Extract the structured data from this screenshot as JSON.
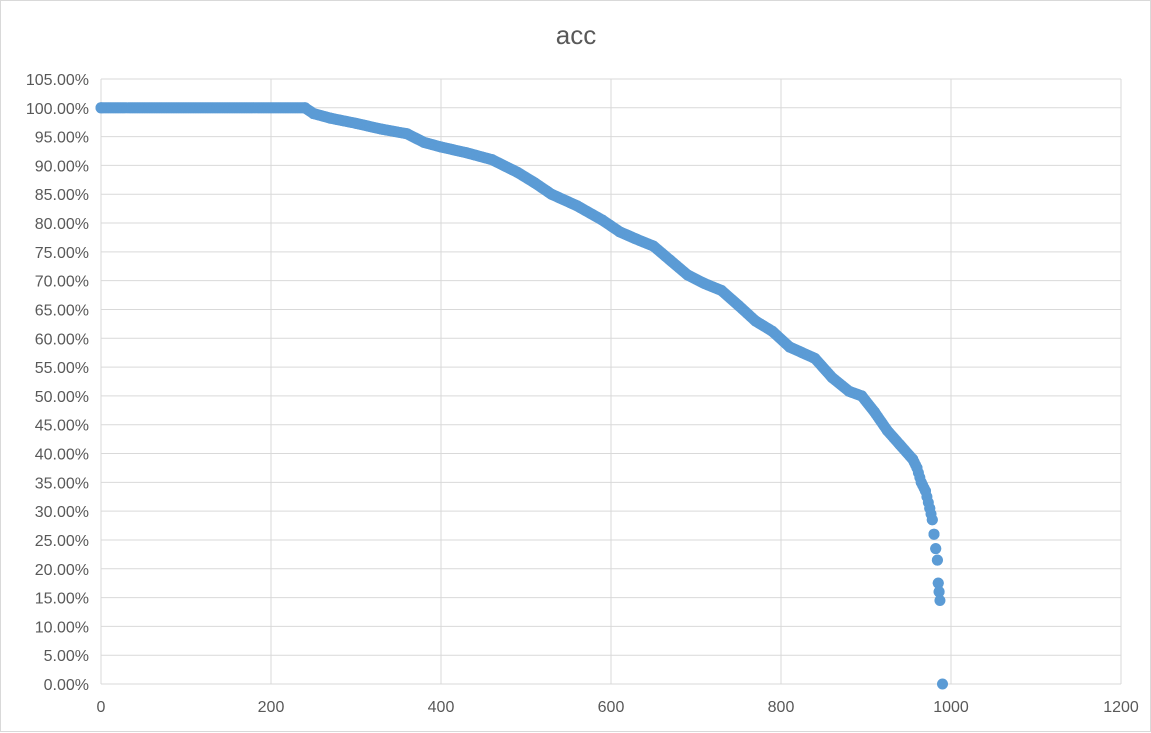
{
  "chart_data": {
    "type": "scatter",
    "title": "acc",
    "xlabel": "",
    "ylabel": "",
    "xlim": [
      0,
      1200
    ],
    "ylim": [
      0,
      1.05
    ],
    "grid": true,
    "legend": "none",
    "x_ticks": [
      0,
      200,
      400,
      600,
      800,
      1000,
      1200
    ],
    "x_tick_labels": [
      "0",
      "200",
      "400",
      "600",
      "800",
      "1000",
      "1200"
    ],
    "y_ticks": [
      0,
      0.05,
      0.1,
      0.15,
      0.2,
      0.25,
      0.3,
      0.35,
      0.4,
      0.45,
      0.5,
      0.55,
      0.6,
      0.65,
      0.7,
      0.75,
      0.8,
      0.85,
      0.9,
      0.95,
      1.0,
      1.05
    ],
    "y_tick_labels": [
      "0.00%",
      "5.00%",
      "10.00%",
      "15.00%",
      "20.00%",
      "25.00%",
      "30.00%",
      "35.00%",
      "40.00%",
      "45.00%",
      "50.00%",
      "55.00%",
      "60.00%",
      "65.00%",
      "70.00%",
      "75.00%",
      "80.00%",
      "85.00%",
      "90.00%",
      "95.00%",
      "100.00%",
      "105.00%"
    ],
    "series": [
      {
        "marker_color": "#5b9bd5",
        "points": [
          [
            0,
            1.0
          ],
          [
            240,
            1.0
          ],
          [
            250,
            0.99
          ],
          [
            270,
            0.982
          ],
          [
            300,
            0.973
          ],
          [
            330,
            0.963
          ],
          [
            360,
            0.955
          ],
          [
            380,
            0.94
          ],
          [
            400,
            0.932
          ],
          [
            430,
            0.922
          ],
          [
            460,
            0.91
          ],
          [
            490,
            0.888
          ],
          [
            510,
            0.87
          ],
          [
            530,
            0.85
          ],
          [
            560,
            0.83
          ],
          [
            590,
            0.805
          ],
          [
            610,
            0.785
          ],
          [
            630,
            0.772
          ],
          [
            650,
            0.76
          ],
          [
            670,
            0.735
          ],
          [
            690,
            0.71
          ],
          [
            710,
            0.695
          ],
          [
            730,
            0.683
          ],
          [
            750,
            0.657
          ],
          [
            770,
            0.63
          ],
          [
            790,
            0.612
          ],
          [
            810,
            0.585
          ],
          [
            840,
            0.565
          ],
          [
            860,
            0.532
          ],
          [
            880,
            0.508
          ],
          [
            895,
            0.5
          ],
          [
            910,
            0.472
          ],
          [
            925,
            0.44
          ],
          [
            940,
            0.415
          ],
          [
            955,
            0.39
          ],
          [
            960,
            0.375
          ],
          [
            965,
            0.35
          ],
          [
            970,
            0.335
          ],
          [
            975,
            0.305
          ],
          [
            978,
            0.285
          ],
          [
            980,
            0.26
          ],
          [
            982,
            0.235
          ],
          [
            984,
            0.215
          ],
          [
            985,
            0.175
          ],
          [
            986,
            0.16
          ],
          [
            987,
            0.145
          ],
          [
            990,
            0.0
          ]
        ]
      }
    ]
  }
}
